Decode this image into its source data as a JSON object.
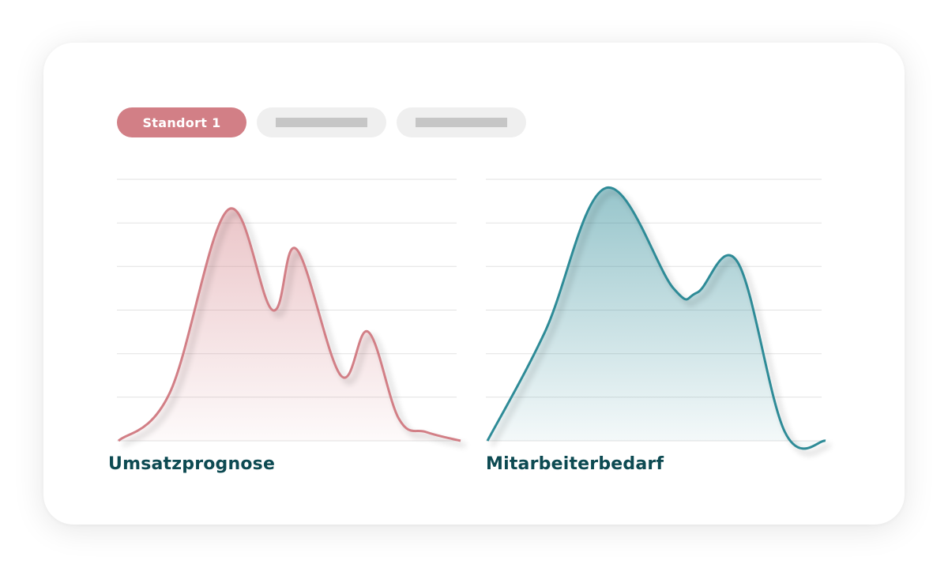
{
  "tabs": [
    {
      "label": "Standort 1",
      "active": true
    },
    {
      "label": "",
      "active": false
    },
    {
      "label": "",
      "active": false
    }
  ],
  "colors": {
    "accent_pink": "#d27f86",
    "accent_teal": "#2f8b97",
    "title": "#0d4a52",
    "grid": "#e2e2e2"
  },
  "chart_data": [
    {
      "type": "area",
      "title": "Umsatzprognose",
      "xlabel": "",
      "ylabel": "",
      "grid": true,
      "gridlines": 7,
      "ylim": [
        0,
        6
      ],
      "x": [
        0,
        0.15,
        0.32,
        0.45,
        0.52,
        0.65,
        0.73,
        0.82,
        0.9,
        1.0
      ],
      "values": [
        0,
        1.1,
        5.3,
        3.0,
        4.4,
        1.5,
        2.5,
        0.5,
        0.2,
        0
      ],
      "color": "#d27f86"
    },
    {
      "type": "area",
      "title": "Mitarbeiterbedarf",
      "xlabel": "",
      "ylabel": "",
      "grid": true,
      "gridlines": 7,
      "ylim": [
        0,
        6
      ],
      "x": [
        0,
        0.17,
        0.35,
        0.55,
        0.62,
        0.74,
        0.88,
        1.0
      ],
      "values": [
        0,
        2.5,
        5.8,
        3.5,
        3.4,
        4.1,
        0.2,
        0
      ],
      "color": "#2f8b97"
    }
  ]
}
